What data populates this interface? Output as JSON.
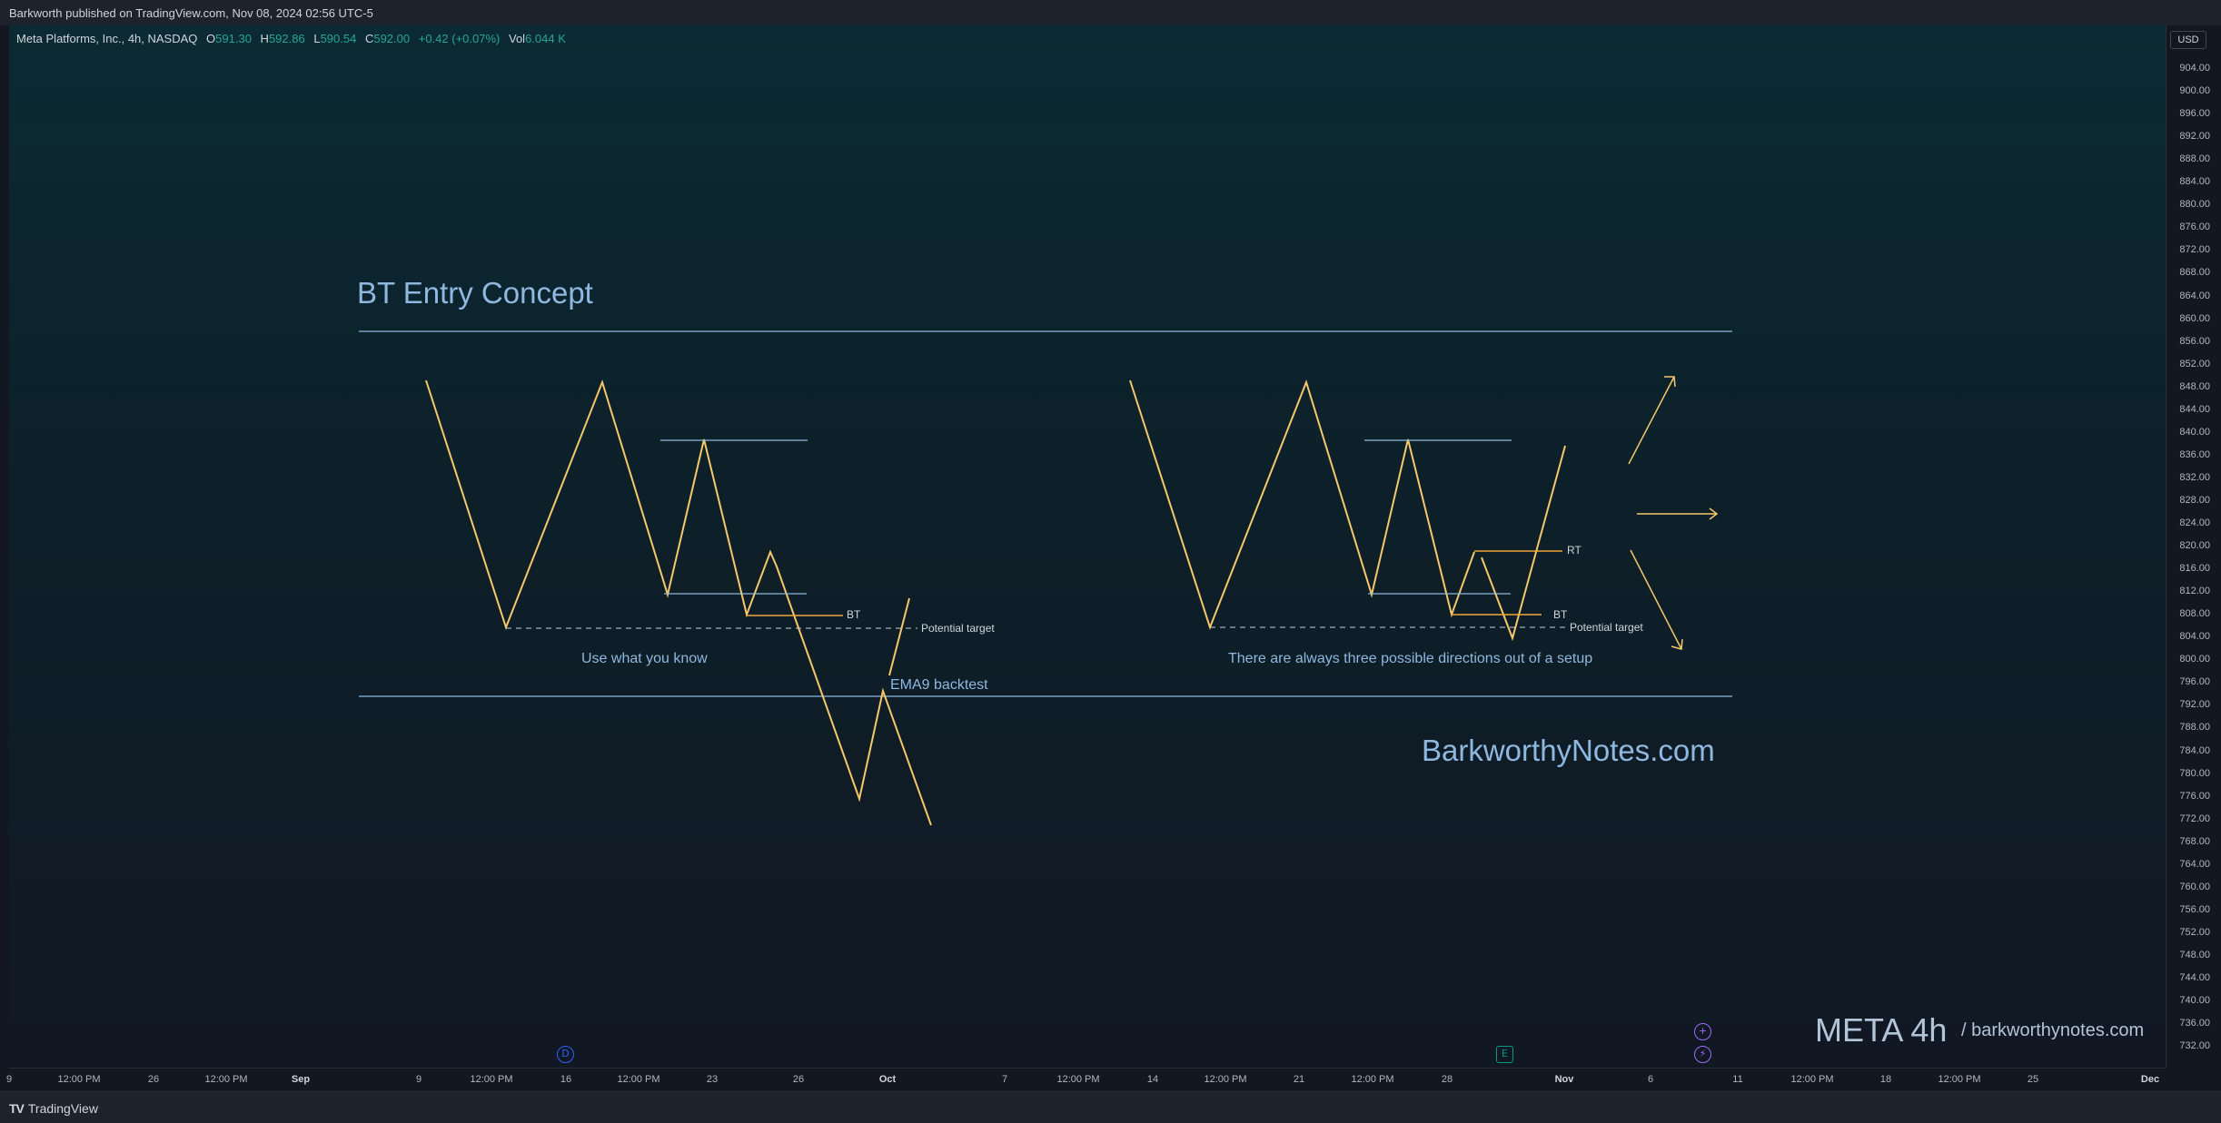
{
  "header": {
    "published": "Barkworth published on TradingView.com, Nov 08, 2024 02:56 UTC-5"
  },
  "legend": {
    "symbol": "Meta Platforms, Inc., 4h, NASDAQ",
    "o_label": "O",
    "o_value": "591.30",
    "h_label": "H",
    "h_value": "592.86",
    "l_label": "L",
    "l_value": "590.54",
    "c_label": "C",
    "c_value": "592.00",
    "change": "+0.42 (+0.07%)",
    "vol_label": "Vol",
    "vol_value": "6.044 K"
  },
  "currency": "USD",
  "price_axis": [
    "904.00",
    "900.00",
    "896.00",
    "892.00",
    "888.00",
    "884.00",
    "880.00",
    "876.00",
    "872.00",
    "868.00",
    "864.00",
    "860.00",
    "856.00",
    "852.00",
    "848.00",
    "844.00",
    "840.00",
    "836.00",
    "832.00",
    "828.00",
    "824.00",
    "820.00",
    "816.00",
    "812.00",
    "808.00",
    "804.00",
    "800.00",
    "796.00",
    "792.00",
    "788.00",
    "784.00",
    "780.00",
    "776.00",
    "772.00",
    "768.00",
    "764.00",
    "760.00",
    "756.00",
    "752.00",
    "748.00",
    "744.00",
    "740.00",
    "736.00",
    "732.00"
  ],
  "time_axis": [
    {
      "label": "9"
    },
    {
      "label": "12:00 PM"
    },
    {
      "label": "26"
    },
    {
      "label": "12:00 PM"
    },
    {
      "label": "Sep",
      "bold": true
    },
    {
      "label": "9"
    },
    {
      "label": "12:00 PM"
    },
    {
      "label": "16"
    },
    {
      "label": "12:00 PM"
    },
    {
      "label": "23"
    },
    {
      "label": "26"
    },
    {
      "label": "Oct",
      "bold": true
    },
    {
      "label": "7"
    },
    {
      "label": "12:00 PM"
    },
    {
      "label": "14"
    },
    {
      "label": "12:00 PM"
    },
    {
      "label": "21"
    },
    {
      "label": "12:00 PM"
    },
    {
      "label": "28"
    },
    {
      "label": "Nov",
      "bold": true
    },
    {
      "label": "6"
    },
    {
      "label": "11"
    },
    {
      "label": "12:00 PM"
    },
    {
      "label": "18"
    },
    {
      "label": "12:00 PM"
    },
    {
      "label": "25"
    },
    {
      "label": "Dec",
      "bold": true
    }
  ],
  "annotations": {
    "title": "BT Entry Concept",
    "left_caption": "Use what you know",
    "right_caption": "There are always three possible directions out of a setup",
    "bt_label": "BT",
    "rt_label": "RT",
    "potential_target": "Potential target",
    "ema_label": "EMA9 backtest",
    "site": "BarkworthyNotes.com",
    "watermark_symbol": "META 4h",
    "watermark_site": "/ barkworthynotes.com"
  },
  "events": {
    "dividend": "D",
    "earnings": "E"
  },
  "colors": {
    "background": "#131722",
    "chart_top": "#0b2a33",
    "drawing_line": "#f6c86a",
    "guide_line": "#8fb8dc",
    "text_blue": "#8fb8e0",
    "up_value": "#26a69a",
    "bt_line": "#f0a63a"
  },
  "footer": {
    "brand": "TradingView"
  }
}
